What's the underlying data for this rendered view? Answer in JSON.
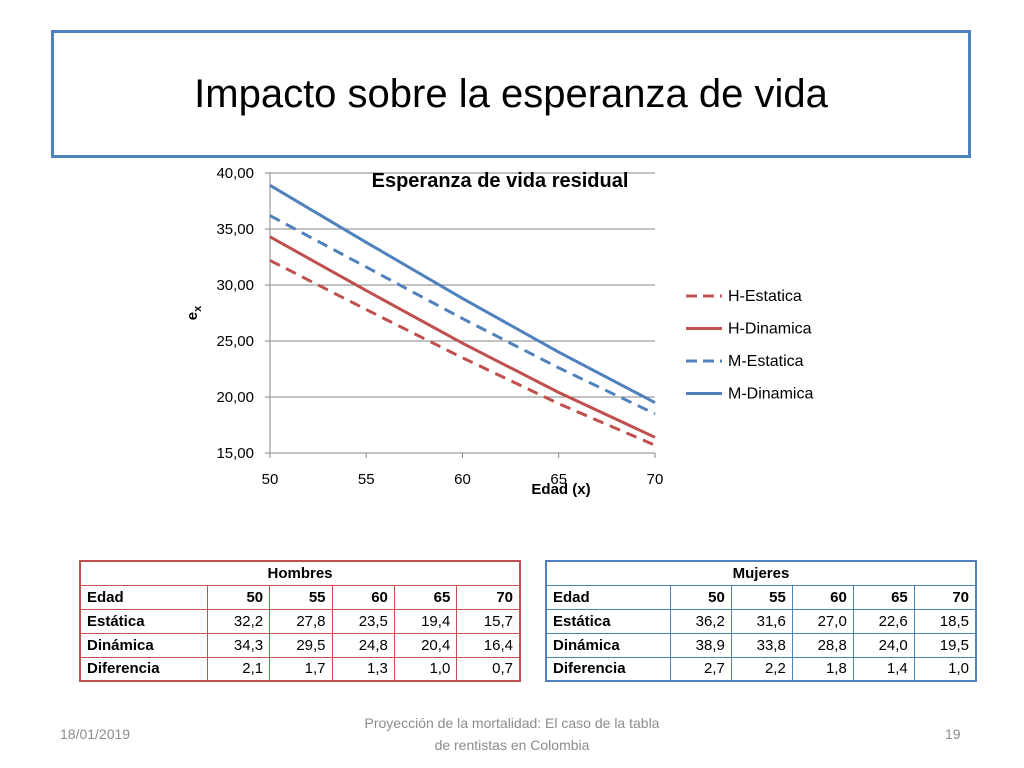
{
  "slide": {
    "title": "Impacto sobre la esperanza de vida",
    "footer_date": "18/01/2019",
    "footer_text": "Proyección de la mortalidad: El caso de la tabla de rentistas en Colombia",
    "page_number": "19"
  },
  "chart_data": {
    "type": "line",
    "title": "Esperanza de vida residual",
    "xlabel": "Edad (x)",
    "ylabel_main": "e",
    "ylabel_sub": "x",
    "x": [
      50,
      55,
      60,
      65,
      70
    ],
    "xlim": [
      50,
      70
    ],
    "ylim": [
      15,
      40
    ],
    "x_ticks": [
      "50",
      "55",
      "60",
      "65",
      "70"
    ],
    "y_ticks": [
      "15,00",
      "20,00",
      "25,00",
      "30,00",
      "35,00",
      "40,00"
    ],
    "grid": true,
    "legend_position": "right",
    "series": [
      {
        "name": "H-Estatica",
        "values": [
          32.2,
          27.8,
          23.5,
          19.4,
          15.7
        ],
        "color": "#c0504d",
        "dashed": true
      },
      {
        "name": "H-Dinamica",
        "values": [
          34.3,
          29.5,
          24.8,
          20.4,
          16.4
        ],
        "color": "#c0504d",
        "dashed": false
      },
      {
        "name": "M-Estatica",
        "values": [
          36.2,
          31.6,
          27.0,
          22.6,
          18.5
        ],
        "color": "#4f81bd",
        "dashed": true
      },
      {
        "name": "M-Dinamica",
        "values": [
          38.9,
          33.8,
          28.8,
          24.0,
          19.5
        ],
        "color": "#4f81bd",
        "dashed": false
      }
    ]
  },
  "tables": {
    "hombres": {
      "title": "Hombres",
      "rows": [
        {
          "label": "Edad",
          "values": [
            "50",
            "55",
            "60",
            "65",
            "70"
          ]
        },
        {
          "label": "Estática",
          "values": [
            "32,2",
            "27,8",
            "23,5",
            "19,4",
            "15,7"
          ]
        },
        {
          "label": "Dinámica",
          "values": [
            "34,3",
            "29,5",
            "24,8",
            "20,4",
            "16,4"
          ]
        },
        {
          "label": "Diferencia",
          "values": [
            "2,1",
            "1,7",
            "1,3",
            "1,0",
            "0,7"
          ]
        }
      ]
    },
    "mujeres": {
      "title": "Mujeres",
      "rows": [
        {
          "label": "Edad",
          "values": [
            "50",
            "55",
            "60",
            "65",
            "70"
          ]
        },
        {
          "label": "Estática",
          "values": [
            "36,2",
            "31,6",
            "27,0",
            "22,6",
            "18,5"
          ]
        },
        {
          "label": "Dinámica",
          "values": [
            "38,9",
            "33,8",
            "28,8",
            "24,0",
            "19,5"
          ]
        },
        {
          "label": "Diferencia",
          "values": [
            "2,7",
            "2,2",
            "1,8",
            "1,4",
            "1,0"
          ]
        }
      ]
    }
  }
}
